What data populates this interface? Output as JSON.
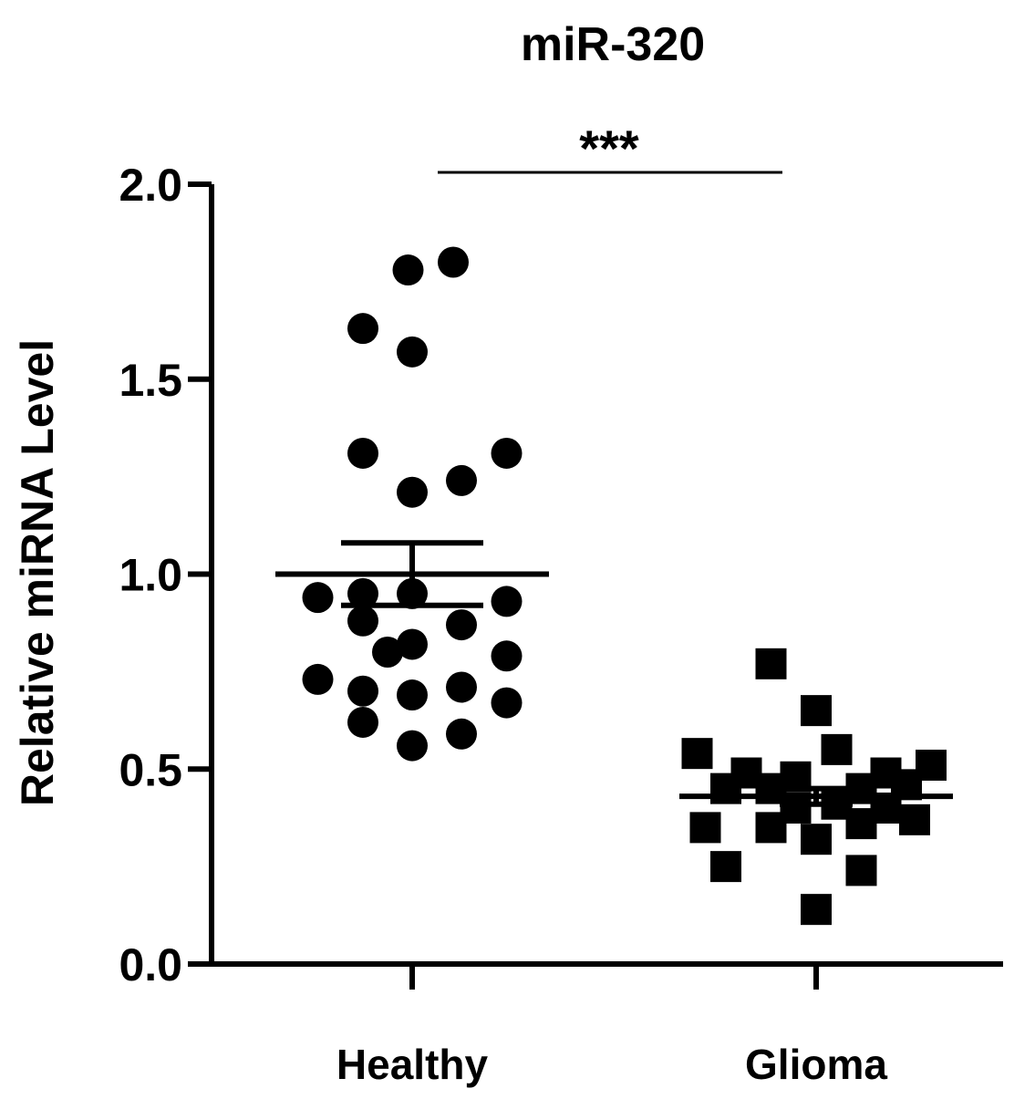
{
  "chart_data": {
    "type": "scatter",
    "title": "miR-320",
    "xlabel": "",
    "ylabel": "Relative miRNA Level",
    "ylim": [
      0,
      2.0
    ],
    "yticks": [
      "0.0",
      "0.5",
      "1.0",
      "1.5",
      "2.0"
    ],
    "categories": [
      "Healthy",
      "Glioma"
    ],
    "grid": false,
    "legend": "none",
    "significance": {
      "label": "***",
      "between": [
        "Healthy",
        "Glioma"
      ]
    },
    "series": [
      {
        "category": "Healthy",
        "marker": "circle",
        "mean": 1.0,
        "sem": 0.08,
        "points": [
          {
            "x": 0.1,
            "y": 1.8
          },
          {
            "x": -0.01,
            "y": 1.78
          },
          {
            "x": -0.12,
            "y": 1.63
          },
          {
            "x": 0.0,
            "y": 1.57
          },
          {
            "x": -0.12,
            "y": 1.31
          },
          {
            "x": 0.23,
            "y": 1.31
          },
          {
            "x": 0.12,
            "y": 1.24
          },
          {
            "x": 0.0,
            "y": 1.21
          },
          {
            "x": -0.23,
            "y": 0.94
          },
          {
            "x": -0.12,
            "y": 0.95
          },
          {
            "x": 0.0,
            "y": 0.95
          },
          {
            "x": 0.23,
            "y": 0.93
          },
          {
            "x": -0.12,
            "y": 0.88
          },
          {
            "x": 0.12,
            "y": 0.87
          },
          {
            "x": 0.0,
            "y": 0.82
          },
          {
            "x": -0.06,
            "y": 0.8
          },
          {
            "x": 0.23,
            "y": 0.79
          },
          {
            "x": -0.23,
            "y": 0.73
          },
          {
            "x": -0.12,
            "y": 0.7
          },
          {
            "x": 0.0,
            "y": 0.69
          },
          {
            "x": 0.12,
            "y": 0.71
          },
          {
            "x": 0.23,
            "y": 0.67
          },
          {
            "x": -0.12,
            "y": 0.62
          },
          {
            "x": 0.12,
            "y": 0.59
          },
          {
            "x": 0.0,
            "y": 0.56
          }
        ]
      },
      {
        "category": "Glioma",
        "marker": "square",
        "mean": 0.43,
        "sem": 0.02,
        "points": [
          {
            "x": -0.11,
            "y": 0.77
          },
          {
            "x": 0.0,
            "y": 0.65
          },
          {
            "x": -0.29,
            "y": 0.54
          },
          {
            "x": 0.05,
            "y": 0.55
          },
          {
            "x": -0.17,
            "y": 0.49
          },
          {
            "x": -0.05,
            "y": 0.48
          },
          {
            "x": 0.17,
            "y": 0.49
          },
          {
            "x": 0.28,
            "y": 0.51
          },
          {
            "x": -0.22,
            "y": 0.45
          },
          {
            "x": -0.11,
            "y": 0.45
          },
          {
            "x": 0.11,
            "y": 0.45
          },
          {
            "x": 0.22,
            "y": 0.46
          },
          {
            "x": -0.05,
            "y": 0.4
          },
          {
            "x": 0.05,
            "y": 0.41
          },
          {
            "x": 0.17,
            "y": 0.4
          },
          {
            "x": -0.27,
            "y": 0.35
          },
          {
            "x": -0.11,
            "y": 0.35
          },
          {
            "x": 0.0,
            "y": 0.32
          },
          {
            "x": 0.11,
            "y": 0.36
          },
          {
            "x": 0.24,
            "y": 0.37
          },
          {
            "x": -0.22,
            "y": 0.25
          },
          {
            "x": 0.11,
            "y": 0.24
          },
          {
            "x": 0.0,
            "y": 0.14
          }
        ]
      }
    ]
  }
}
